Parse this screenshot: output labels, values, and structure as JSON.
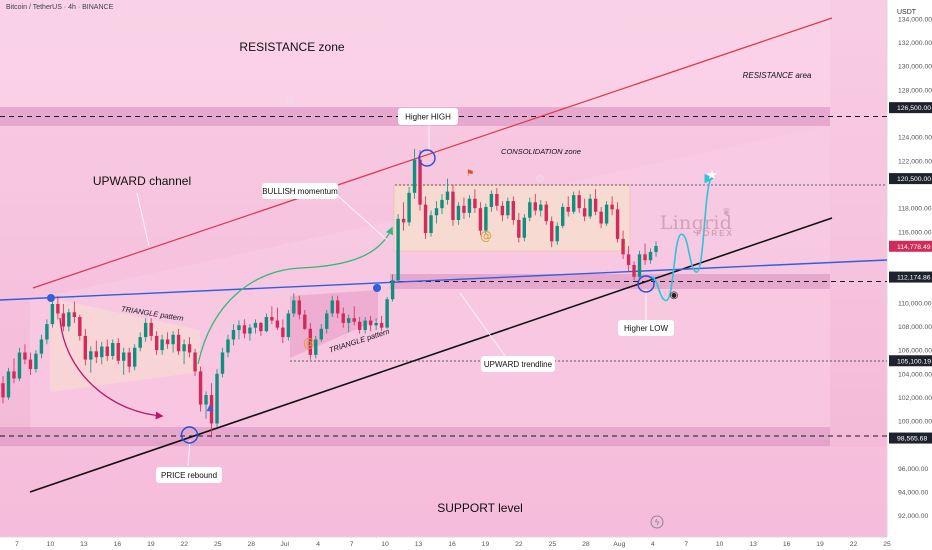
{
  "header": {
    "symbol": "Bitcoin / TetherUS · 4h · BINANCE"
  },
  "brand": {
    "word": "Lingrid",
    "sub": "FOREX"
  },
  "chart_data": {
    "type": "candlestick",
    "currency": "USDT",
    "ylim": [
      90200,
      135600
    ],
    "price_labels": [
      {
        "v": 134000,
        "t": "134,000.00"
      },
      {
        "v": 132000,
        "t": "132,000.00"
      },
      {
        "v": 130000,
        "t": "130,000.00"
      },
      {
        "v": 128000,
        "t": "128,000.00"
      },
      {
        "v": 124000,
        "t": "124,000.00"
      },
      {
        "v": 122000,
        "t": "122,000.00"
      },
      {
        "v": 118000,
        "t": "118,000.00"
      },
      {
        "v": 116000,
        "t": "116,000.00"
      },
      {
        "v": 110000,
        "t": "110,000.00"
      },
      {
        "v": 108000,
        "t": "108,000.00"
      },
      {
        "v": 106000,
        "t": "106,000.00"
      },
      {
        "v": 104000,
        "t": "104,000.00"
      },
      {
        "v": 102000,
        "t": "102,000.00"
      },
      {
        "v": 100000,
        "t": "100,000.00"
      },
      {
        "v": 96000,
        "t": "96,000.00"
      },
      {
        "v": 94000,
        "t": "94,000.00"
      },
      {
        "v": 92000,
        "t": "92,000.00"
      }
    ],
    "key_levels": [
      {
        "v": 126500,
        "t": "126,500.00"
      },
      {
        "v": 120500,
        "t": "120,500.00"
      },
      {
        "v": 112174.86,
        "t": "112,174.86"
      },
      {
        "v": 105100.19,
        "t": "105,100.19"
      },
      {
        "v": 98565.68,
        "t": "98,565.68"
      }
    ],
    "current_price": {
      "v": 114778.49,
      "t": "114,778.49"
    },
    "x_ticks": [
      "7",
      "10",
      "13",
      "16",
      "19",
      "22",
      "25",
      "28",
      "Jul",
      "4",
      "7",
      "10",
      "13",
      "16",
      "19",
      "22",
      "25",
      "28",
      "Aug",
      "4",
      "7",
      "10",
      "13",
      "16",
      "19",
      "22",
      "25"
    ],
    "annotations": [
      "RESISTANCE zone",
      "RESISTANCE area",
      "Higher HIGH",
      "CONSOLIDATION zone",
      "UPWARD channel",
      "BULLISH momentum",
      "TRIANGLE pattern",
      "TRIANGLE pattern",
      "UPWARD trendline",
      "Higher LOW",
      "PRICE rebound",
      "SUPPORT level"
    ],
    "candles_ohlc": [
      [
        103200,
        103800,
        101500,
        102000
      ],
      [
        102000,
        104500,
        101800,
        104200
      ],
      [
        104200,
        105300,
        103200,
        103600
      ],
      [
        103600,
        106200,
        103400,
        105800
      ],
      [
        105800,
        106500,
        104800,
        105200
      ],
      [
        105200,
        105800,
        103900,
        104400
      ],
      [
        104400,
        106000,
        104100,
        105700
      ],
      [
        105700,
        107300,
        105300,
        106900
      ],
      [
        106900,
        108600,
        106500,
        108200
      ],
      [
        108200,
        110400,
        107900,
        109900
      ],
      [
        109900,
        110600,
        108600,
        109100
      ],
      [
        109100,
        109900,
        107600,
        108000
      ],
      [
        108000,
        109500,
        107600,
        109200
      ],
      [
        109200,
        110100,
        108300,
        108800
      ],
      [
        108800,
        109000,
        106800,
        107200
      ],
      [
        107200,
        107800,
        104700,
        105200
      ],
      [
        105200,
        106300,
        104100,
        105900
      ],
      [
        105900,
        106800,
        104900,
        105400
      ],
      [
        105400,
        106700,
        104800,
        106300
      ],
      [
        106300,
        106900,
        105100,
        105500
      ],
      [
        105500,
        106900,
        105200,
        106600
      ],
      [
        106600,
        107000,
        104800,
        105100
      ],
      [
        105100,
        106200,
        103900,
        105800
      ],
      [
        105800,
        106200,
        104100,
        104600
      ],
      [
        104600,
        106500,
        104300,
        106200
      ],
      [
        106200,
        107500,
        105900,
        107100
      ],
      [
        107100,
        108700,
        106700,
        108300
      ],
      [
        108300,
        108700,
        106800,
        107200
      ],
      [
        107200,
        107600,
        105600,
        106000
      ],
      [
        106000,
        107300,
        105600,
        106900
      ],
      [
        106900,
        107500,
        106100,
        106500
      ],
      [
        106500,
        107600,
        105800,
        107300
      ],
      [
        107300,
        107800,
        105600,
        105900
      ],
      [
        105900,
        106900,
        104800,
        106500
      ],
      [
        106500,
        107100,
        105400,
        105800
      ],
      [
        105800,
        106100,
        103800,
        104200
      ],
      [
        104200,
        104600,
        100800,
        101400
      ],
      [
        101400,
        102500,
        100200,
        102200
      ],
      [
        102200,
        103200,
        98600,
        99800
      ],
      [
        99800,
        104400,
        99500,
        104000
      ],
      [
        104000,
        106200,
        103700,
        105800
      ],
      [
        105800,
        107300,
        105400,
        106900
      ],
      [
        106900,
        108200,
        106400,
        107700
      ],
      [
        107700,
        108500,
        106900,
        108100
      ],
      [
        108100,
        108600,
        107000,
        107400
      ],
      [
        107400,
        108200,
        106800,
        107900
      ],
      [
        107900,
        108600,
        107400,
        108300
      ],
      [
        108300,
        108400,
        107200,
        107600
      ],
      [
        107600,
        109100,
        107500,
        108800
      ],
      [
        108800,
        109700,
        108200,
        108500
      ],
      [
        108500,
        109600,
        107700,
        107900
      ],
      [
        107900,
        108600,
        106600,
        107100
      ],
      [
        107100,
        109400,
        106800,
        109100
      ],
      [
        109100,
        110800,
        108800,
        110200
      ],
      [
        110200,
        110600,
        108600,
        109000
      ],
      [
        109000,
        109400,
        107700,
        107800
      ],
      [
        107800,
        108300,
        105200,
        105600
      ],
      [
        105600,
        107200,
        105300,
        106900
      ],
      [
        106900,
        108200,
        106700,
        107800
      ],
      [
        107800,
        109400,
        107400,
        109100
      ],
      [
        109100,
        110600,
        108800,
        110200
      ],
      [
        110200,
        110600,
        108700,
        109100
      ],
      [
        109100,
        109600,
        107900,
        108300
      ],
      [
        108300,
        109000,
        107500,
        108700
      ],
      [
        108700,
        109700,
        108100,
        108400
      ],
      [
        108400,
        108800,
        107400,
        107700
      ],
      [
        107700,
        108800,
        107400,
        108500
      ],
      [
        108500,
        108900,
        107600,
        108100
      ],
      [
        108100,
        108700,
        107700,
        108300
      ],
      [
        108300,
        108900,
        107600,
        107900
      ],
      [
        107900,
        110500,
        107800,
        110300
      ],
      [
        110300,
        112400,
        110100,
        111900
      ],
      [
        111900,
        117500,
        111700,
        117100
      ],
      [
        117100,
        118500,
        116100,
        116800
      ],
      [
        116800,
        119800,
        116500,
        119300
      ],
      [
        119300,
        123000,
        118800,
        122100
      ],
      [
        122100,
        122900,
        117800,
        118300
      ],
      [
        118300,
        119000,
        115400,
        115900
      ],
      [
        115900,
        117800,
        115600,
        117400
      ],
      [
        117400,
        118600,
        116700,
        118000
      ],
      [
        118000,
        119200,
        117500,
        118700
      ],
      [
        118700,
        120500,
        118300,
        119400
      ],
      [
        119400,
        120000,
        116500,
        117000
      ],
      [
        117000,
        118500,
        116600,
        118200
      ],
      [
        118200,
        118900,
        117100,
        117600
      ],
      [
        117600,
        119100,
        117200,
        118800
      ],
      [
        118800,
        119600,
        117600,
        118000
      ],
      [
        118000,
        118500,
        115700,
        116100
      ],
      [
        116100,
        118400,
        115800,
        118100
      ],
      [
        118100,
        119500,
        117700,
        119200
      ],
      [
        119200,
        119700,
        117800,
        118200
      ],
      [
        118200,
        118600,
        116900,
        117400
      ],
      [
        117400,
        118900,
        117100,
        118600
      ],
      [
        118600,
        119000,
        116600,
        117000
      ],
      [
        117000,
        117600,
        115100,
        115500
      ],
      [
        115500,
        117500,
        115200,
        117200
      ],
      [
        117200,
        118900,
        116900,
        118500
      ],
      [
        118500,
        119200,
        117400,
        117800
      ],
      [
        117800,
        118700,
        117300,
        118300
      ],
      [
        118300,
        118600,
        116600,
        116900
      ],
      [
        116900,
        117300,
        114700,
        115200
      ],
      [
        115200,
        116800,
        114900,
        116500
      ],
      [
        116500,
        118400,
        116300,
        118100
      ],
      [
        118100,
        119000,
        117300,
        117700
      ],
      [
        117700,
        119400,
        117500,
        119100
      ],
      [
        119100,
        119500,
        117600,
        118000
      ],
      [
        118000,
        118800,
        116900,
        117300
      ],
      [
        117300,
        119200,
        117100,
        118800
      ],
      [
        118800,
        119600,
        117400,
        117700
      ],
      [
        117700,
        118100,
        116300,
        116700
      ],
      [
        116700,
        118600,
        116500,
        118300
      ],
      [
        118300,
        119000,
        117400,
        117900
      ],
      [
        117900,
        118500,
        115100,
        115400
      ],
      [
        115400,
        116100,
        113700,
        114100
      ],
      [
        114100,
        114800,
        112600,
        113200
      ],
      [
        113200,
        113500,
        111900,
        112200
      ],
      [
        112200,
        114400,
        111900,
        114100
      ],
      [
        114100,
        115000,
        113200,
        113600
      ],
      [
        113600,
        114600,
        113300,
        114300
      ],
      [
        114300,
        115200,
        113900,
        114800
      ]
    ],
    "projection": [
      {
        "t": 0,
        "v": 112200
      },
      {
        "t": 0.25,
        "v": 110200
      },
      {
        "t": 0.5,
        "v": 115800
      },
      {
        "t": 0.75,
        "v": 112600
      },
      {
        "t": 1,
        "v": 120500
      }
    ]
  }
}
